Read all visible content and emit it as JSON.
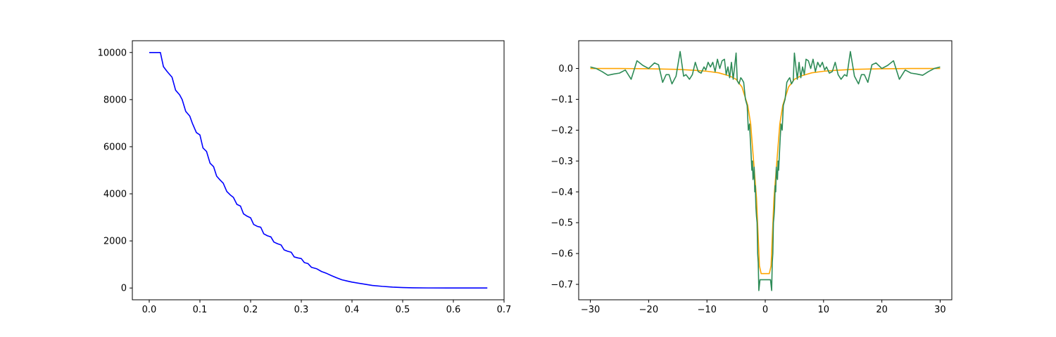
{
  "chart_data": [
    {
      "type": "line",
      "title": "",
      "xlabel": "",
      "ylabel": "",
      "xlim": [
        -0.0333,
        0.7
      ],
      "ylim": [
        -500,
        10500
      ],
      "grid": false,
      "xticks": [
        "0.0",
        "0.1",
        "0.2",
        "0.3",
        "0.4",
        "0.5",
        "0.6",
        "0.7"
      ],
      "yticks": [
        "0",
        "2000",
        "4000",
        "6000",
        "8000",
        "10000"
      ],
      "series": [
        {
          "color": "#0000ff",
          "x": [
            0.0,
            0.022,
            0.028,
            0.035,
            0.045,
            0.052,
            0.06,
            0.065,
            0.072,
            0.08,
            0.085,
            0.093,
            0.1,
            0.106,
            0.113,
            0.12,
            0.127,
            0.133,
            0.14,
            0.146,
            0.153,
            0.16,
            0.166,
            0.173,
            0.18,
            0.186,
            0.193,
            0.2,
            0.206,
            0.213,
            0.22,
            0.226,
            0.233,
            0.24,
            0.246,
            0.253,
            0.26,
            0.266,
            0.273,
            0.28,
            0.286,
            0.293,
            0.3,
            0.306,
            0.313,
            0.32,
            0.33,
            0.34,
            0.35,
            0.36,
            0.37,
            0.38,
            0.39,
            0.4,
            0.42,
            0.44,
            0.46,
            0.48,
            0.5,
            0.52,
            0.55,
            0.6,
            0.667
          ],
          "y": [
            10000,
            10000,
            9400,
            9200,
            8950,
            8400,
            8200,
            8000,
            7500,
            7300,
            7000,
            6600,
            6500,
            5950,
            5800,
            5300,
            5150,
            4750,
            4580,
            4450,
            4100,
            3950,
            3850,
            3550,
            3480,
            3150,
            3050,
            2980,
            2700,
            2620,
            2580,
            2300,
            2220,
            2170,
            1950,
            1880,
            1830,
            1620,
            1560,
            1520,
            1320,
            1280,
            1250,
            1080,
            1040,
            880,
            820,
            700,
            620,
            520,
            430,
            350,
            300,
            250,
            180,
            110,
            70,
            40,
            20,
            8,
            3,
            1,
            0
          ]
        }
      ]
    },
    {
      "type": "line",
      "title": "",
      "xlabel": "",
      "ylabel": "",
      "xlim": [
        -32,
        32
      ],
      "ylim": [
        -0.75,
        0.09
      ],
      "grid": false,
      "xticks": [
        "−30",
        "−20",
        "−10",
        "0",
        "10",
        "20",
        "30"
      ],
      "yticks": [
        "−0.7",
        "−0.6",
        "−0.5",
        "−0.4",
        "−0.3",
        "−0.2",
        "−0.1",
        "0.0"
      ],
      "series": [
        {
          "color": "#ffa500",
          "x": [
            -30,
            -25,
            -20,
            -15,
            -12,
            -10,
            -8,
            -6,
            -5,
            -4,
            -3,
            -2.5,
            -2,
            -1.5,
            -1.2,
            -1,
            -0.7,
            0,
            0.7,
            1,
            1.2,
            1.5,
            2,
            2.5,
            3,
            4,
            5,
            6,
            8,
            10,
            12,
            15,
            20,
            25,
            30
          ],
          "y": [
            0,
            0,
            -0.001,
            -0.003,
            -0.006,
            -0.009,
            -0.014,
            -0.025,
            -0.035,
            -0.06,
            -0.12,
            -0.18,
            -0.3,
            -0.42,
            -0.55,
            -0.64,
            -0.665,
            -0.665,
            -0.665,
            -0.64,
            -0.55,
            -0.42,
            -0.3,
            -0.18,
            -0.12,
            -0.06,
            -0.035,
            -0.025,
            -0.014,
            -0.009,
            -0.006,
            -0.003,
            -0.001,
            0,
            0
          ]
        },
        {
          "color": "#2e8b57",
          "x": [
            -30,
            -29,
            -28,
            -27,
            -26,
            -25,
            -24,
            -23,
            -22,
            -21,
            -20,
            -19,
            -18.3,
            -17.6,
            -17,
            -16.5,
            -16,
            -15.3,
            -14.6,
            -14,
            -13.6,
            -13,
            -12.5,
            -12,
            -11.5,
            -11,
            -10.5,
            -10.2,
            -9.8,
            -9.4,
            -9,
            -8.6,
            -8.2,
            -7.8,
            -7.4,
            -7,
            -6.7,
            -6.4,
            -6.1,
            -5.8,
            -5.5,
            -5.2,
            -5,
            -4.8,
            -4.5,
            -4.2,
            -4,
            -3.7,
            -3.4,
            -3.1,
            -2.9,
            -2.7,
            -2.5,
            -2.3,
            -2.2,
            -2.1,
            -2.0,
            -1.9,
            -1.8,
            -1.7,
            -1.6,
            -1.5,
            -1.4,
            -1.3,
            -1.2,
            -1.1,
            -0.9,
            0.9,
            1.1,
            1.2,
            1.3,
            1.4,
            1.5,
            1.6,
            1.7,
            1.8,
            1.9,
            2.0,
            2.1,
            2.2,
            2.3,
            2.5,
            2.7,
            2.9,
            3.1,
            3.4,
            3.7,
            4,
            4.2,
            4.5,
            4.8,
            5,
            5.2,
            5.5,
            5.8,
            6.1,
            6.4,
            6.7,
            7,
            7.4,
            7.8,
            8.2,
            8.6,
            9,
            9.4,
            9.8,
            10.2,
            10.5,
            11,
            11.5,
            12,
            12.5,
            13,
            13.6,
            14,
            14.6,
            15.3,
            16,
            16.5,
            17,
            17.6,
            18.3,
            19,
            20,
            21,
            22,
            23,
            24,
            25,
            26,
            27,
            28,
            29,
            30
          ],
          "y": [
            0.005,
            0,
            -0.01,
            -0.022,
            -0.018,
            -0.015,
            -0.005,
            -0.035,
            0.025,
            0.01,
            0,
            0.018,
            0.012,
            -0.045,
            -0.02,
            -0.02,
            -0.05,
            -0.025,
            0.055,
            -0.025,
            -0.02,
            -0.035,
            -0.02,
            0.02,
            -0.01,
            -0.015,
            0.005,
            -0.005,
            0.02,
            0.005,
            0.02,
            -0.01,
            0.03,
            0,
            0.025,
            0.03,
            -0.02,
            0.005,
            -0.03,
            0.02,
            -0.035,
            0.015,
            0.05,
            -0.04,
            -0.05,
            -0.03,
            -0.035,
            -0.045,
            -0.1,
            -0.12,
            -0.2,
            -0.18,
            -0.25,
            -0.33,
            -0.3,
            -0.36,
            -0.35,
            -0.32,
            -0.4,
            -0.38,
            -0.45,
            -0.48,
            -0.5,
            -0.6,
            -0.63,
            -0.72,
            -0.685,
            -0.685,
            -0.72,
            -0.63,
            -0.6,
            -0.5,
            -0.48,
            -0.45,
            -0.38,
            -0.4,
            -0.32,
            -0.35,
            -0.36,
            -0.3,
            -0.33,
            -0.25,
            -0.18,
            -0.2,
            -0.12,
            -0.1,
            -0.045,
            -0.035,
            -0.03,
            -0.05,
            -0.04,
            0.05,
            0.015,
            -0.035,
            0.02,
            -0.03,
            0.005,
            -0.02,
            0.03,
            0.025,
            0,
            0.03,
            -0.01,
            0.02,
            0.005,
            0.02,
            -0.005,
            0.005,
            -0.015,
            -0.01,
            0.02,
            -0.02,
            -0.035,
            -0.02,
            -0.025,
            0.055,
            -0.025,
            -0.05,
            -0.02,
            -0.02,
            -0.045,
            0.012,
            0.018,
            0,
            0.01,
            0.025,
            -0.035,
            -0.005,
            -0.015,
            -0.018,
            -0.022,
            -0.01,
            0,
            0.005
          ]
        }
      ]
    }
  ]
}
